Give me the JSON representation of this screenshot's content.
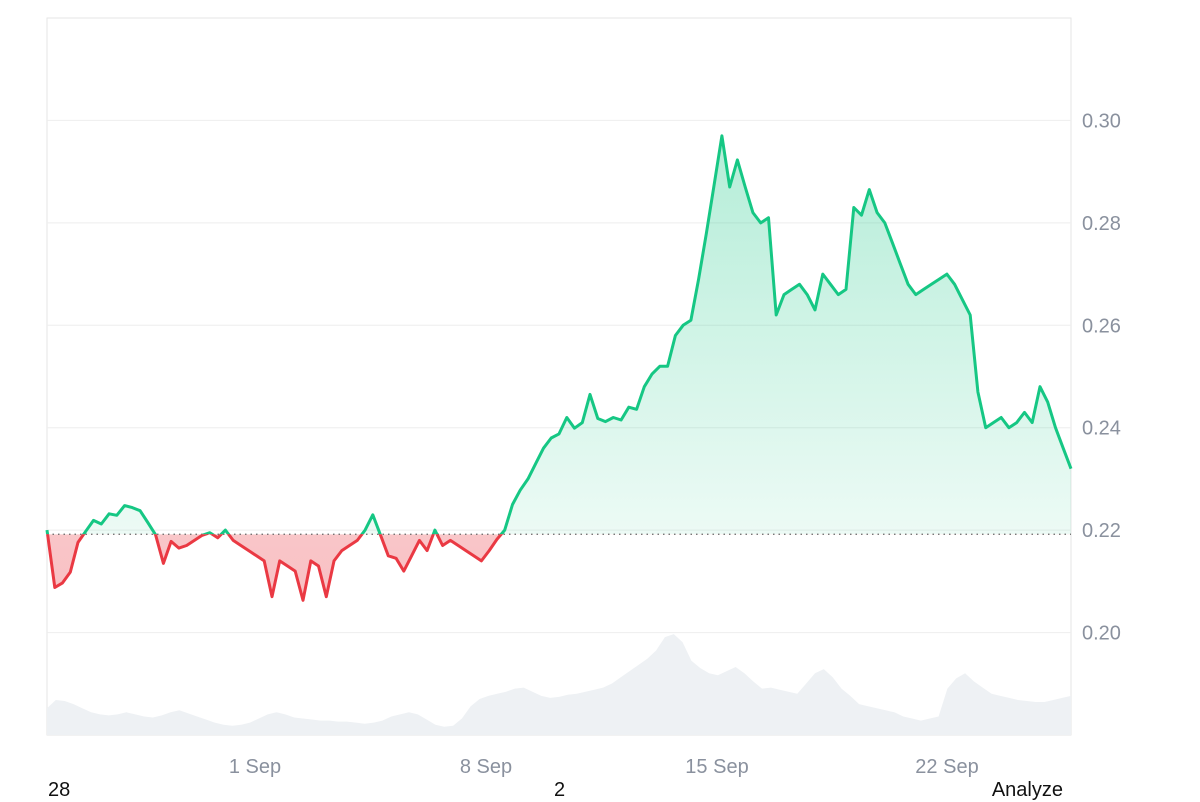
{
  "chart_data": {
    "type": "area",
    "x_tick_labels": [
      "1 Sep",
      "8 Sep",
      "15 Sep",
      "22 Sep"
    ],
    "y_tick_labels": [
      "0.30",
      "0.28",
      "0.26",
      "0.24",
      "0.22",
      "0.20"
    ],
    "y_ticks": [
      0.3,
      0.28,
      0.26,
      0.24,
      0.22,
      0.2
    ],
    "ylim": [
      0.18,
      0.32
    ],
    "baseline": 0.2192,
    "grid": true,
    "colors": {
      "up": "#16c784",
      "down": "#ea3943",
      "volume": "#eef1f4",
      "grid": "#eeeeee",
      "tick": "#8a919e"
    },
    "series": [
      {
        "values": [
          0.22,
          0.2088,
          0.2097,
          0.2118,
          0.2176,
          0.2198,
          0.2219,
          0.2212,
          0.2232,
          0.2229,
          0.2248,
          0.2244,
          0.2238,
          0.2215,
          0.2191,
          0.2135,
          0.2178,
          0.2165,
          0.217,
          0.218,
          0.219,
          0.2195,
          0.2185,
          0.22,
          0.218,
          0.217,
          0.216,
          0.215,
          0.214,
          0.207,
          0.214,
          0.213,
          0.212,
          0.2063,
          0.214,
          0.213,
          0.207,
          0.214,
          0.216,
          0.217,
          0.218,
          0.22,
          0.223,
          0.219,
          0.215,
          0.2145,
          0.212,
          0.215,
          0.218,
          0.216,
          0.22,
          0.217,
          0.218,
          0.217,
          0.216,
          0.215,
          0.214,
          0.216,
          0.2182,
          0.22,
          0.225,
          0.2278,
          0.23,
          0.233,
          0.236,
          0.238,
          0.2388,
          0.242,
          0.2399,
          0.241,
          0.2465,
          0.2418,
          0.2412,
          0.242,
          0.2415,
          0.244,
          0.2436,
          0.248,
          0.2505,
          0.252,
          0.252,
          0.258,
          0.26,
          0.261,
          0.269,
          0.278,
          0.2875,
          0.297,
          0.287,
          0.2923,
          0.287,
          0.282,
          0.28,
          0.281,
          0.262,
          0.266,
          0.267,
          0.268,
          0.266,
          0.263,
          0.27,
          0.268,
          0.266,
          0.267,
          0.283,
          0.2815,
          0.2865,
          0.282,
          0.28,
          0.276,
          0.272,
          0.268,
          0.266,
          0.267,
          0.268,
          0.269,
          0.27,
          0.268,
          0.265,
          0.262,
          0.247,
          0.24,
          0.241,
          0.242,
          0.24,
          0.241,
          0.243,
          0.241,
          0.248,
          0.245,
          0.24,
          0.236,
          0.232
        ]
      }
    ],
    "volume": [
      0.26,
      0.34,
      0.33,
      0.3,
      0.26,
      0.22,
      0.2,
      0.19,
      0.2,
      0.22,
      0.2,
      0.18,
      0.17,
      0.19,
      0.22,
      0.24,
      0.21,
      0.18,
      0.15,
      0.12,
      0.1,
      0.09,
      0.1,
      0.12,
      0.16,
      0.2,
      0.22,
      0.2,
      0.17,
      0.16,
      0.15,
      0.14,
      0.14,
      0.13,
      0.13,
      0.12,
      0.11,
      0.12,
      0.14,
      0.18,
      0.2,
      0.22,
      0.2,
      0.15,
      0.1,
      0.08,
      0.09,
      0.16,
      0.28,
      0.35,
      0.38,
      0.4,
      0.42,
      0.45,
      0.46,
      0.42,
      0.38,
      0.36,
      0.37,
      0.39,
      0.4,
      0.42,
      0.44,
      0.46,
      0.5,
      0.56,
      0.62,
      0.68,
      0.74,
      0.82,
      0.95,
      0.98,
      0.9,
      0.72,
      0.65,
      0.6,
      0.58,
      0.62,
      0.66,
      0.6,
      0.52,
      0.45,
      0.46,
      0.44,
      0.42,
      0.4,
      0.5,
      0.6,
      0.64,
      0.56,
      0.45,
      0.38,
      0.3,
      0.28,
      0.26,
      0.24,
      0.22,
      0.18,
      0.16,
      0.14,
      0.16,
      0.18,
      0.45,
      0.55,
      0.6,
      0.52,
      0.46,
      0.4,
      0.38,
      0.36,
      0.34,
      0.33,
      0.32,
      0.32,
      0.34,
      0.36,
      0.38
    ]
  },
  "footer": {
    "left": "28",
    "middle": "2",
    "right": "Analyze"
  }
}
